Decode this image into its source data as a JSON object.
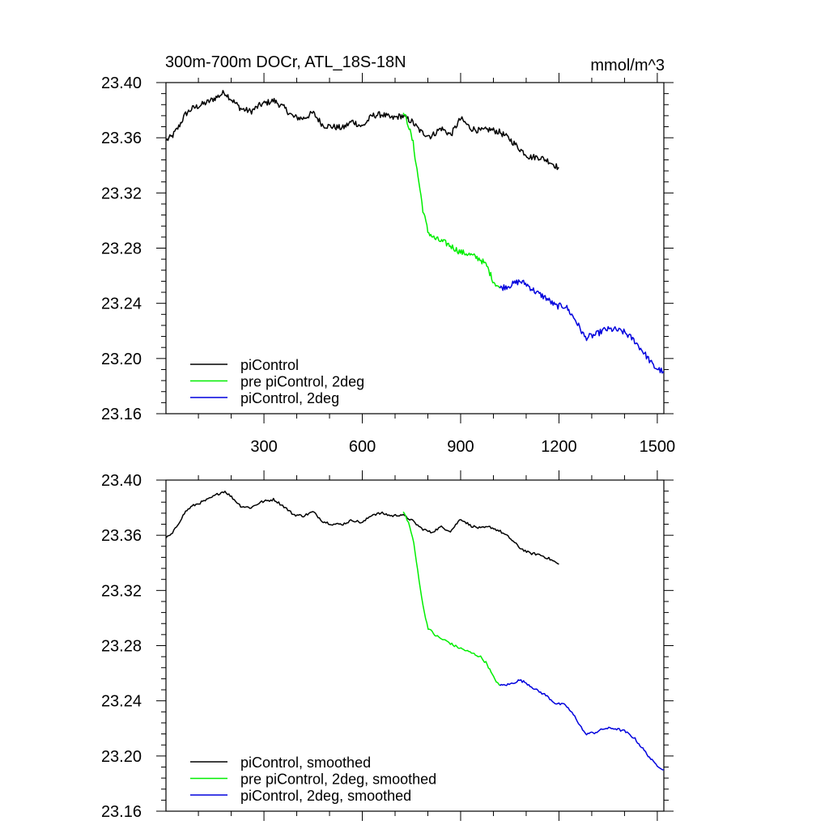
{
  "header": {
    "title": "300m-700m DOCr, ATL_18S-18N",
    "units": "mmol/m^3"
  },
  "chart_data": [
    {
      "type": "line",
      "panel": "top",
      "xlim": [
        1,
        1520
      ],
      "ylim": [
        23.16,
        23.4
      ],
      "y_ticks": [
        23.16,
        23.2,
        23.24,
        23.28,
        23.32,
        23.36,
        23.4
      ],
      "y_tick_labels": [
        "23.16",
        "23.20",
        "23.24",
        "23.28",
        "23.32",
        "23.36",
        "23.40"
      ],
      "x_ticks": [
        300,
        600,
        900,
        1200,
        1500
      ],
      "x_tick_labels": [
        "300",
        "600",
        "900",
        "1200",
        "1500"
      ],
      "grid": false,
      "legend_position": "bottom-left",
      "series": [
        {
          "name": "piControl",
          "color": "#000000",
          "x": [
            1,
            20,
            40,
            60,
            80,
            100,
            130,
            160,
            180,
            200,
            230,
            260,
            290,
            330,
            360,
            390,
            420,
            450,
            480,
            510,
            540,
            570,
            600,
            630,
            660,
            690,
            720,
            750,
            780,
            810,
            840,
            870,
            900,
            930,
            960,
            990,
            1020,
            1050,
            1080,
            1110,
            1140,
            1170,
            1200
          ],
          "y": [
            23.358,
            23.361,
            23.368,
            23.377,
            23.381,
            23.383,
            23.386,
            23.39,
            23.393,
            23.388,
            23.381,
            23.379,
            23.384,
            23.387,
            23.382,
            23.375,
            23.374,
            23.378,
            23.369,
            23.368,
            23.367,
            23.372,
            23.368,
            23.376,
            23.377,
            23.374,
            23.376,
            23.372,
            23.364,
            23.361,
            23.367,
            23.362,
            23.374,
            23.367,
            23.365,
            23.366,
            23.364,
            23.359,
            23.352,
            23.346,
            23.346,
            23.343,
            23.338
          ]
        },
        {
          "name": "pre piControl, 2deg",
          "color": "#00ee00",
          "x": [
            725,
            740,
            755,
            770,
            785,
            800,
            820,
            840,
            860,
            880,
            900,
            920,
            940,
            960,
            980,
            1000,
            1020
          ],
          "y": [
            23.378,
            23.37,
            23.356,
            23.332,
            23.308,
            23.292,
            23.287,
            23.285,
            23.283,
            23.28,
            23.277,
            23.276,
            23.274,
            23.272,
            23.267,
            23.256,
            23.251
          ]
        },
        {
          "name": "piControl, 2deg",
          "color": "#0000dd",
          "x": [
            1020,
            1050,
            1080,
            1100,
            1130,
            1160,
            1190,
            1220,
            1250,
            1280,
            1310,
            1340,
            1370,
            1400,
            1430,
            1460,
            1490,
            1520
          ],
          "y": [
            23.251,
            23.253,
            23.256,
            23.254,
            23.248,
            23.244,
            23.238,
            23.238,
            23.228,
            23.215,
            23.217,
            23.221,
            23.221,
            23.219,
            23.213,
            23.204,
            23.194,
            23.19
          ]
        }
      ]
    },
    {
      "type": "line",
      "panel": "bottom",
      "xlim": [
        1,
        1520
      ],
      "ylim": [
        23.16,
        23.4
      ],
      "y_ticks": [
        23.16,
        23.2,
        23.24,
        23.28,
        23.32,
        23.36,
        23.4
      ],
      "y_tick_labels": [
        "23.16",
        "23.20",
        "23.24",
        "23.28",
        "23.32",
        "23.36",
        "23.40"
      ],
      "x_ticks": [
        300,
        600,
        900,
        1200,
        1500
      ],
      "grid": false,
      "legend_position": "bottom-left",
      "series": [
        {
          "name": "piControl, smoothed",
          "color": "#000000",
          "x": [
            1,
            20,
            40,
            60,
            80,
            100,
            130,
            160,
            180,
            200,
            230,
            260,
            290,
            330,
            360,
            390,
            420,
            450,
            480,
            510,
            540,
            570,
            600,
            630,
            660,
            690,
            720,
            750,
            780,
            810,
            840,
            870,
            900,
            930,
            960,
            990,
            1020,
            1050,
            1080,
            1110,
            1140,
            1170,
            1200
          ],
          "y": [
            23.358,
            23.361,
            23.369,
            23.377,
            23.381,
            23.383,
            23.386,
            23.39,
            23.392,
            23.388,
            23.381,
            23.38,
            23.384,
            23.386,
            23.381,
            23.375,
            23.374,
            23.377,
            23.37,
            23.368,
            23.368,
            23.371,
            23.369,
            23.375,
            23.376,
            23.374,
            23.375,
            23.371,
            23.365,
            23.362,
            23.366,
            23.363,
            23.372,
            23.367,
            23.365,
            23.366,
            23.363,
            23.358,
            23.351,
            23.347,
            23.346,
            23.343,
            23.339
          ]
        },
        {
          "name": "pre piControl, 2deg, smoothed",
          "color": "#00ee00",
          "x": [
            725,
            740,
            755,
            770,
            785,
            800,
            820,
            840,
            860,
            880,
            900,
            920,
            940,
            960,
            980,
            1000,
            1020
          ],
          "y": [
            23.377,
            23.37,
            23.357,
            23.333,
            23.309,
            23.293,
            23.288,
            23.285,
            23.283,
            23.28,
            23.278,
            23.276,
            23.274,
            23.272,
            23.267,
            23.257,
            23.251
          ]
        },
        {
          "name": "piControl, 2deg, smoothed",
          "color": "#0000dd",
          "x": [
            1020,
            1050,
            1080,
            1100,
            1130,
            1160,
            1190,
            1220,
            1250,
            1280,
            1310,
            1340,
            1370,
            1400,
            1430,
            1460,
            1490,
            1520
          ],
          "y": [
            23.251,
            23.252,
            23.255,
            23.253,
            23.248,
            23.244,
            23.238,
            23.237,
            23.228,
            23.216,
            23.217,
            23.22,
            23.22,
            23.218,
            23.213,
            23.204,
            23.195,
            23.19
          ]
        }
      ]
    }
  ]
}
